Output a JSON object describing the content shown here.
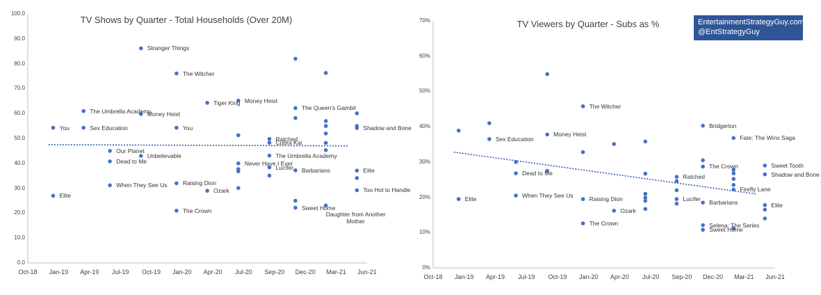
{
  "credit": {
    "line1": "EntertainmentStrategyGuy.com",
    "line2": "@EntStrategyGuy"
  },
  "colors": {
    "marker": "#4472c4",
    "trend": "#2e5ea8",
    "axis": "#bfbfbf",
    "credit_bg": "#2f5597"
  },
  "chart_data": [
    {
      "type": "scatter",
      "title": "TV Shows by Quarter - Total Households (Over 20M)",
      "xlabel": "",
      "ylabel": "",
      "x_ticks": [
        "Oct-18",
        "Jan-19",
        "Apr-19",
        "Jul-19",
        "Oct-19",
        "Jan-20",
        "Apr-20",
        "Jul-20",
        "Sep-20",
        "Dec-20",
        "Mar-21",
        "Jun-21"
      ],
      "y_ticks": [
        "0.0",
        "10.0",
        "20.0",
        "30.0",
        "40.0",
        "50.0",
        "60.0",
        "70.0",
        "80.0",
        "90.0",
        "100.0"
      ],
      "xlim": [
        "2018-10-01",
        "2021-07-01"
      ],
      "ylim": [
        0,
        100
      ],
      "grid": false,
      "trendline": {
        "type": "linear",
        "y_start": 47.5,
        "y_end": 47.0
      },
      "points": [
        {
          "x": "2018-12-15",
          "y": 54.3,
          "label": "You"
        },
        {
          "x": "2018-12-15",
          "y": 27.0,
          "label": "Elite"
        },
        {
          "x": "2019-03-15",
          "y": 61.0,
          "label": "The Umbrella Academy"
        },
        {
          "x": "2019-03-15",
          "y": 54.3,
          "label": "Sex Education"
        },
        {
          "x": "2019-06-01",
          "y": 45.0,
          "label": "Our Planet"
        },
        {
          "x": "2019-06-01",
          "y": 40.8,
          "label": "Dead to Me"
        },
        {
          "x": "2019-06-01",
          "y": 31.2,
          "label": "When They See Us"
        },
        {
          "x": "2019-09-01",
          "y": 86.2,
          "label": "Stranger Things"
        },
        {
          "x": "2019-09-01",
          "y": 59.8,
          "label": "Money Heist"
        },
        {
          "x": "2019-09-01",
          "y": 43.0,
          "label": "Unbelievable"
        },
        {
          "x": "2019-12-15",
          "y": 76.1,
          "label": "The Witcher"
        },
        {
          "x": "2019-12-15",
          "y": 54.3,
          "label": "You"
        },
        {
          "x": "2019-12-15",
          "y": 32.0,
          "label": "Raising Dion"
        },
        {
          "x": "2019-12-15",
          "y": 21.0,
          "label": "The Crown"
        },
        {
          "x": "2020-03-15",
          "y": 64.3,
          "label": "Tiger King"
        },
        {
          "x": "2020-03-15",
          "y": 29.0,
          "label": "Ozark"
        },
        {
          "x": "2020-06-15",
          "y": 65.2,
          "label": "Money Heist"
        },
        {
          "x": "2020-06-15",
          "y": 51.3,
          "label": ""
        },
        {
          "x": "2020-06-15",
          "y": 40.0,
          "label": "Never Have I Ever"
        },
        {
          "x": "2020-06-15",
          "y": 37.7,
          "label": ""
        },
        {
          "x": "2020-06-15",
          "y": 36.8,
          "label": ""
        },
        {
          "x": "2020-06-15",
          "y": 30.1,
          "label": ""
        },
        {
          "x": "2020-09-15",
          "y": 49.8,
          "label": "Ratched"
        },
        {
          "x": "2020-09-15",
          "y": 48.3,
          "label": "Cobra Kai"
        },
        {
          "x": "2020-09-15",
          "y": 43.1,
          "label": "The Umbrella Academy"
        },
        {
          "x": "2020-09-15",
          "y": 38.4,
          "label": "Lucifer"
        },
        {
          "x": "2020-09-15",
          "y": 35.1,
          "label": ""
        },
        {
          "x": "2020-12-01",
          "y": 82.0,
          "label": ""
        },
        {
          "x": "2020-12-01",
          "y": 62.2,
          "label": "The Queen's Gambit"
        },
        {
          "x": "2020-12-01",
          "y": 58.2,
          "label": ""
        },
        {
          "x": "2020-12-01",
          "y": 37.2,
          "label": "Barbarians"
        },
        {
          "x": "2020-12-01",
          "y": 25.0,
          "label": ""
        },
        {
          "x": "2020-12-01",
          "y": 22.2,
          "label": "Sweet Home"
        },
        {
          "x": "2021-03-01",
          "y": 76.3,
          "label": ""
        },
        {
          "x": "2021-03-01",
          "y": 57.0,
          "label": ""
        },
        {
          "x": "2021-03-01",
          "y": 55.0,
          "label": ""
        },
        {
          "x": "2021-03-01",
          "y": 52.0,
          "label": ""
        },
        {
          "x": "2021-03-01",
          "y": 48.2,
          "label": ""
        },
        {
          "x": "2021-03-01",
          "y": 45.3,
          "label": ""
        },
        {
          "x": "2021-03-01",
          "y": 23.1,
          "label": "Daughter from Another Mother"
        },
        {
          "x": "2021-06-01",
          "y": 60.1,
          "label": ""
        },
        {
          "x": "2021-06-01",
          "y": 55.0,
          "label": ""
        },
        {
          "x": "2021-06-01",
          "y": 54.2,
          "label": "Shadow and Bone"
        },
        {
          "x": "2021-06-01",
          "y": 37.1,
          "label": "Elite"
        },
        {
          "x": "2021-06-01",
          "y": 34.1,
          "label": ""
        },
        {
          "x": "2021-06-01",
          "y": 29.2,
          "label": "Too Hot to Handle"
        }
      ]
    },
    {
      "type": "scatter",
      "title": "TV Viewers by Quarter - Subs as %",
      "xlabel": "",
      "ylabel": "",
      "x_ticks": [
        "Oct-18",
        "Jan-19",
        "Apr-19",
        "Jul-19",
        "Oct-19",
        "Jan-20",
        "Apr-20",
        "Jul-20",
        "Sep-20",
        "Dec-20",
        "Mar-21",
        "Jun-21"
      ],
      "y_ticks": [
        "0%",
        "10%",
        "20%",
        "30%",
        "40%",
        "50%",
        "60%",
        "70%"
      ],
      "xlim": [
        "2018-10-01",
        "2021-07-01"
      ],
      "ylim": [
        0,
        70
      ],
      "grid": false,
      "trendline": {
        "type": "linear",
        "y_start": 32.8,
        "y_end": 20.9
      },
      "points": [
        {
          "x": "2018-12-15",
          "y": 38.9,
          "label": ""
        },
        {
          "x": "2018-12-15",
          "y": 19.5,
          "label": "Elite"
        },
        {
          "x": "2019-03-15",
          "y": 41.0,
          "label": ""
        },
        {
          "x": "2019-03-15",
          "y": 36.5,
          "label": "Sex Education"
        },
        {
          "x": "2019-06-01",
          "y": 30.0,
          "label": ""
        },
        {
          "x": "2019-06-01",
          "y": 26.8,
          "label": "Dead to Me"
        },
        {
          "x": "2019-06-01",
          "y": 20.5,
          "label": "When They See Us"
        },
        {
          "x": "2019-09-01",
          "y": 54.9,
          "label": ""
        },
        {
          "x": "2019-09-01",
          "y": 37.8,
          "label": "Money Heist"
        },
        {
          "x": "2019-09-01",
          "y": 27.5,
          "label": ""
        },
        {
          "x": "2019-12-15",
          "y": 45.8,
          "label": "The Witcher"
        },
        {
          "x": "2019-12-15",
          "y": 32.8,
          "label": ""
        },
        {
          "x": "2019-12-15",
          "y": 19.5,
          "label": "Raising Dion"
        },
        {
          "x": "2019-12-15",
          "y": 12.6,
          "label": "The Crown"
        },
        {
          "x": "2020-03-15",
          "y": 35.1,
          "label": ""
        },
        {
          "x": "2020-03-15",
          "y": 16.2,
          "label": "Ozark"
        },
        {
          "x": "2020-06-15",
          "y": 35.8,
          "label": ""
        },
        {
          "x": "2020-06-15",
          "y": 26.7,
          "label": ""
        },
        {
          "x": "2020-06-15",
          "y": 21.0,
          "label": ""
        },
        {
          "x": "2020-06-15",
          "y": 19.9,
          "label": ""
        },
        {
          "x": "2020-06-15",
          "y": 19.0,
          "label": ""
        },
        {
          "x": "2020-06-15",
          "y": 16.7,
          "label": ""
        },
        {
          "x": "2020-09-15",
          "y": 25.8,
          "label": "Ratched"
        },
        {
          "x": "2020-09-15",
          "y": 24.6,
          "label": ""
        },
        {
          "x": "2020-09-15",
          "y": 22.0,
          "label": ""
        },
        {
          "x": "2020-09-15",
          "y": 19.5,
          "label": "Lucifer"
        },
        {
          "x": "2020-09-15",
          "y": 18.2,
          "label": ""
        },
        {
          "x": "2020-12-01",
          "y": 40.3,
          "label": "Bridgerton"
        },
        {
          "x": "2020-12-01",
          "y": 30.5,
          "label": ""
        },
        {
          "x": "2020-12-01",
          "y": 28.7,
          "label": "The Crown"
        },
        {
          "x": "2020-12-01",
          "y": 18.5,
          "label": "Barbarians"
        },
        {
          "x": "2020-12-01",
          "y": 12.1,
          "label": "Selena: The Series"
        },
        {
          "x": "2020-12-01",
          "y": 10.8,
          "label": "Sweet Home"
        },
        {
          "x": "2021-03-01",
          "y": 36.8,
          "label": "Fate: The Winx Saga"
        },
        {
          "x": "2021-03-01",
          "y": 27.8,
          "label": ""
        },
        {
          "x": "2021-03-01",
          "y": 26.8,
          "label": ""
        },
        {
          "x": "2021-03-01",
          "y": 25.2,
          "label": ""
        },
        {
          "x": "2021-03-01",
          "y": 23.5,
          "label": ""
        },
        {
          "x": "2021-03-01",
          "y": 22.2,
          "label": "Firefly Lane"
        },
        {
          "x": "2021-03-01",
          "y": 11.2,
          "label": ""
        },
        {
          "x": "2021-06-01",
          "y": 29.0,
          "label": "Sweet Tooth"
        },
        {
          "x": "2021-06-01",
          "y": 26.5,
          "label": "Shadow and Bone"
        },
        {
          "x": "2021-06-01",
          "y": 17.8,
          "label": "Elite"
        },
        {
          "x": "2021-06-01",
          "y": 16.5,
          "label": ""
        },
        {
          "x": "2021-06-01",
          "y": 14.0,
          "label": ""
        }
      ]
    }
  ]
}
